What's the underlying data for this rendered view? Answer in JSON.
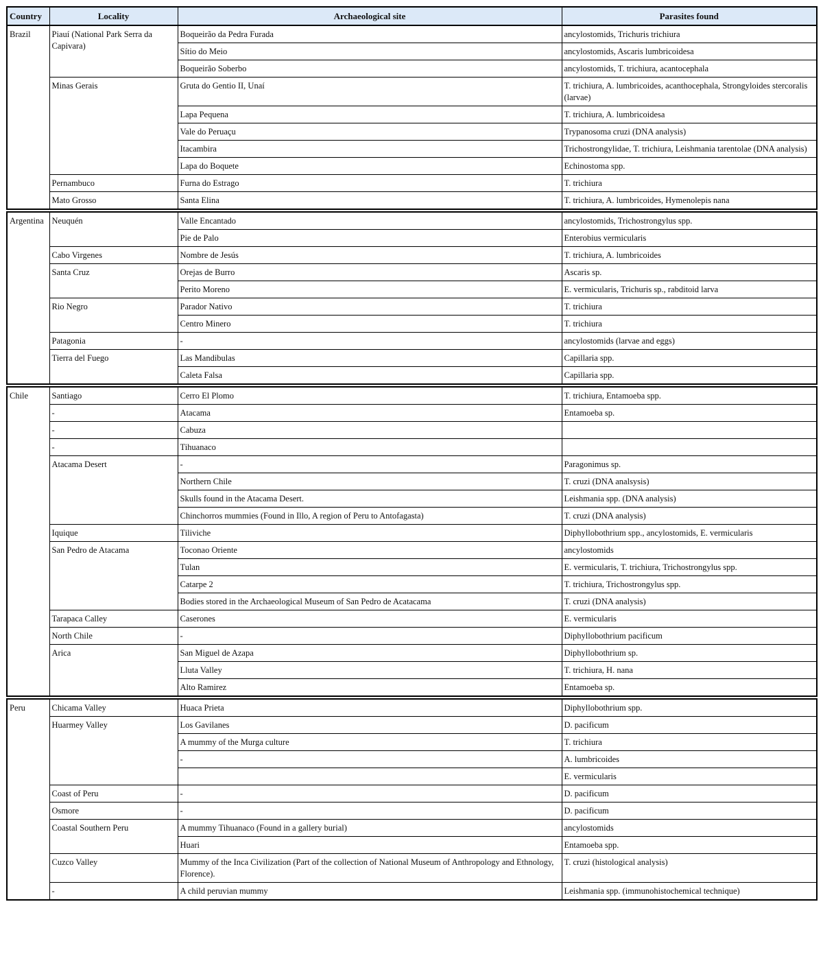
{
  "table": {
    "headers": [
      "Country",
      "Locality",
      "Archaeological site",
      "Parasites found"
    ],
    "groups": [
      {
        "country": "Brazil",
        "localities": [
          {
            "name": "Piauí (National Park Serra da Capivara)",
            "sites": [
              {
                "site": "Boqueirão da Pedra Furada",
                "parasites": "ancylostomids, Trichuris trichiura"
              },
              {
                "site": "Sítio do Meio",
                "parasites": "ancylostomids, Ascaris lumbricoidesa"
              },
              {
                "site": "Boqueirão Soberbo",
                "parasites": "ancylostomids, T. trichiura, acantocephala"
              }
            ]
          },
          {
            "name": "Minas Gerais",
            "sites": [
              {
                "site": "Gruta do Gentio II, Unaí",
                "parasites": "T. trichiura, A. lumbricoides, acanthocephala, Strongyloides stercoralis (larvae)"
              },
              {
                "site": "Lapa Pequena",
                "parasites": "T. trichiura, A. lumbricoidesa"
              },
              {
                "site": "Vale do Peruaçu",
                "parasites": "Trypanosoma cruzi (DNA analysis)"
              },
              {
                "site": "Itacambira",
                "parasites": "Trichostrongylidae, T. trichiura, Leishmania tarentolae (DNA analysis)"
              },
              {
                "site": "Lapa do Boquete",
                "parasites": "Echinostoma spp."
              }
            ]
          },
          {
            "name": "Pernambuco",
            "sites": [
              {
                "site": "Furna do Estrago",
                "parasites": "T. trichiura"
              }
            ]
          },
          {
            "name": "Mato Grosso",
            "sites": [
              {
                "site": "Santa Elina",
                "parasites": "T. trichiura, A. lumbricoides, Hymenolepis nana"
              }
            ]
          }
        ]
      },
      {
        "country": "Argentina",
        "localities": [
          {
            "name": "Neuquén",
            "sites": [
              {
                "site": "Valle Encantado",
                "parasites": "ancylostomids, Trichostrongylus spp."
              },
              {
                "site": "Pie de Palo",
                "parasites": "Enterobius vermicularis"
              }
            ]
          },
          {
            "name": "Cabo Virgenes",
            "sites": [
              {
                "site": "Nombre de Jesús",
                "parasites": "T. trichiura, A. lumbricoides"
              }
            ]
          },
          {
            "name": "Santa Cruz",
            "sites": [
              {
                "site": "Orejas de Burro",
                "parasites": "Ascaris sp."
              },
              {
                "site": "Perito Moreno",
                "parasites": "E. vermicularis, Trichuris sp., rabditoid larva"
              }
            ]
          },
          {
            "name": "Rio Negro",
            "sites": [
              {
                "site": "Parador Nativo",
                "parasites": "T. trichiura"
              },
              {
                "site": "Centro Minero",
                "parasites": "T. trichiura"
              }
            ]
          },
          {
            "name": "Patagonia",
            "sites": [
              {
                "site": "-",
                "parasites": "ancylostomids (larvae and eggs)"
              }
            ]
          },
          {
            "name": "Tierra del Fuego",
            "sites": [
              {
                "site": "Las Mandibulas",
                "parasites": "Capillaria spp."
              },
              {
                "site": "Caleta Falsa",
                "parasites": "Capillaria spp."
              }
            ]
          }
        ]
      },
      {
        "country": "Chile",
        "localities": [
          {
            "name": "Santiago",
            "sites": [
              {
                "site": "Cerro El Plomo",
                "parasites": "T. trichiura, Entamoeba spp."
              }
            ]
          },
          {
            "name": "-",
            "sites": [
              {
                "site": "Atacama",
                "parasites": "Entamoeba sp."
              }
            ]
          },
          {
            "name": "-",
            "sites": [
              {
                "site": "Cabuza"
              }
            ]
          },
          {
            "name": "-",
            "sites": [
              {
                "site": "Tihuanaco"
              }
            ]
          },
          {
            "name": "Atacama Desert",
            "sites": [
              {
                "site": "-",
                "parasites": "Paragonimus sp."
              },
              {
                "site": "Northern Chile",
                "parasites": "T. cruzi (DNA analsysis)"
              },
              {
                "site": "Skulls found in the Atacama Desert.",
                "parasites": "Leishmania spp. (DNA analysis)"
              },
              {
                "site": "Chinchorros mummies (Found in Illo, A region of Peru to Antofagasta)",
                "parasites": "T. cruzi (DNA analysis)"
              }
            ]
          },
          {
            "name": "Iquique",
            "sites": [
              {
                "site": "Tiliviche",
                "parasites": "Diphyllobothrium spp., ancylostomids, E. vermicularis"
              }
            ]
          },
          {
            "name": "San Pedro de Atacama",
            "sites": [
              {
                "site": "Toconao Oriente",
                "parasites": "ancylostomids"
              },
              {
                "site": "Tulan",
                "parasites": "E. vermicularis, T. trichiura, Trichostrongylus spp."
              },
              {
                "site": "Catarpe 2",
                "parasites": "T. trichiura, Trichostrongylus spp."
              },
              {
                "site": "Bodies stored in the Archaeological Museum of San Pedro de Acatacama",
                "parasites": "T. cruzi (DNA analysis)"
              }
            ]
          },
          {
            "name": "Tarapaca Calley",
            "sites": [
              {
                "site": "Caserones",
                "parasites": "E. vermicularis"
              }
            ]
          },
          {
            "name": "North Chile",
            "sites": [
              {
                "site": "-",
                "parasites": "Diphyllobothrium pacificum"
              }
            ]
          },
          {
            "name": "Arica",
            "sites": [
              {
                "site": "San Miguel de Azapa",
                "parasites": "Diphyllobothrium sp."
              },
              {
                "site": "Lluta Valley",
                "parasites": "T. trichiura, H. nana"
              },
              {
                "site": "Alto Ramirez",
                "parasites": "Entamoeba sp."
              }
            ]
          }
        ]
      },
      {
        "country": "Peru",
        "localities": [
          {
            "name": "Chicama Valley",
            "sites": [
              {
                "site": "Huaca Prieta",
                "parasites": "Diphyllobothrium spp."
              }
            ]
          },
          {
            "name": "Huarmey Valley",
            "sites": [
              {
                "site": "Los Gavilanes",
                "parasites": "D. pacificum"
              },
              {
                "site": "A mummy of the Murga culture",
                "parasites": "T. trichiura"
              },
              {
                "site": "-",
                "parasites": "A. lumbricoides"
              },
              {
                "parasites": "E. vermicularis"
              }
            ]
          },
          {
            "name": "Coast of Peru",
            "sites": [
              {
                "site": "-",
                "parasites": "D. pacificum"
              }
            ]
          },
          {
            "name": "Osmore",
            "sites": [
              {
                "site": "-",
                "parasites": "D. pacificum"
              }
            ]
          },
          {
            "name": "Coastal Southern Peru",
            "sites": [
              {
                "site": "A mummy Tihuanaco (Found in a gallery burial)",
                "parasites": "ancylostomids"
              },
              {
                "site": "Huari",
                "parasites": "Entamoeba spp."
              }
            ]
          },
          {
            "name": "Cuzco Valley",
            "sites": [
              {
                "site": "Mummy of the Inca Civilization (Part of the collection of National Museum of Anthropology and Ethnology, Florence).",
                "parasites": "T. cruzi (histological analysis)"
              }
            ]
          },
          {
            "name": "-",
            "sites": [
              {
                "site": "A child peruvian mummy",
                "parasites": "Leishmania spp. (immunohistochemical technique)"
              }
            ]
          }
        ]
      }
    ]
  }
}
